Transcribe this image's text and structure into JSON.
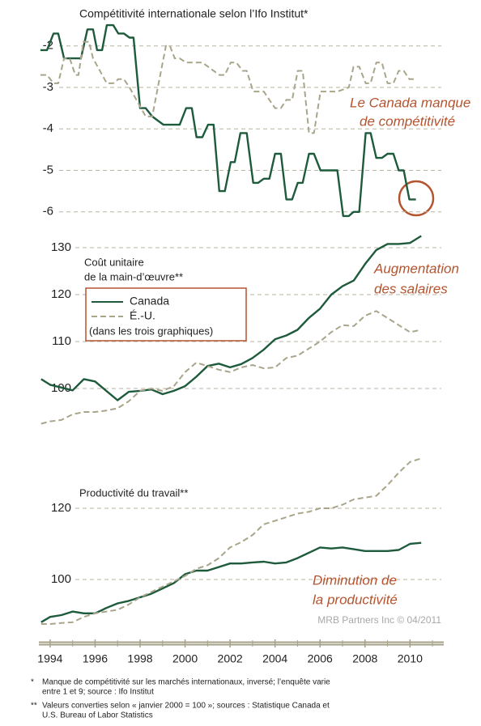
{
  "chart_data": [
    {
      "type": "line",
      "title": "Compétitivité internationale selon l’Ifo Institut*",
      "xlim": [
        1993.5,
        2011.5
      ],
      "ylim": [
        -6.2,
        -1.4
      ],
      "yticks": [
        -2,
        -3,
        -4,
        -5,
        -6
      ],
      "grid": true,
      "series": [
        {
          "name": "Canada",
          "color": "#1e5a3c",
          "dash": false,
          "x": [
            1993.57,
            1993.86,
            1994.15,
            1994.36,
            1994.62,
            1995.37,
            1995.66,
            1995.91,
            1996.09,
            1996.31,
            1996.52,
            1996.81,
            1997.03,
            1997.28,
            1997.53,
            1997.71,
            1998.0,
            1998.25,
            1998.54,
            1998.79,
            1999.04,
            1999.76,
            2000.05,
            2000.3,
            2000.51,
            2000.77,
            2001.02,
            2001.27,
            2001.52,
            2001.77,
            2002.03,
            2002.21,
            2002.46,
            2002.74,
            2003.03,
            2003.25,
            2003.5,
            2003.75,
            2004.0,
            2004.26,
            2004.5,
            2004.76,
            2005.01,
            2005.23,
            2005.51,
            2005.73,
            2006.02,
            2006.77,
            2007.03,
            2007.28,
            2007.49,
            2007.74,
            2008.03,
            2008.25,
            2008.5,
            2008.75,
            2009.0,
            2009.26,
            2009.5,
            2009.72,
            2009.97,
            2010.26
          ],
          "values": [
            -2.1,
            -2.1,
            -1.7,
            -1.7,
            -2.3,
            -2.3,
            -1.6,
            -1.6,
            -2.1,
            -2.1,
            -1.5,
            -1.5,
            -1.7,
            -1.7,
            -1.8,
            -1.8,
            -3.5,
            -3.5,
            -3.7,
            -3.8,
            -3.9,
            -3.9,
            -3.5,
            -3.5,
            -4.2,
            -4.2,
            -3.9,
            -3.9,
            -5.5,
            -5.5,
            -4.8,
            -4.8,
            -4.1,
            -4.1,
            -5.3,
            -5.3,
            -5.2,
            -5.2,
            -4.6,
            -4.6,
            -5.7,
            -5.7,
            -5.3,
            -5.3,
            -4.6,
            -4.6,
            -5.0,
            -5.0,
            -6.1,
            -6.1,
            -6.0,
            -6.0,
            -4.1,
            -4.1,
            -4.7,
            -4.7,
            -4.6,
            -4.6,
            -5.0,
            -5.0,
            -5.7,
            -5.7
          ]
        },
        {
          "name": "É.-U.",
          "color": "#a9a58a",
          "dash": true,
          "x": [
            1993.57,
            1993.86,
            1994.15,
            1994.36,
            1994.62,
            1994.87,
            1995.12,
            1995.26,
            1995.48,
            1995.73,
            1995.91,
            1996.52,
            1996.81,
            1997.03,
            1997.28,
            1997.53,
            1998.25,
            1998.54,
            1998.79,
            1999.15,
            1999.33,
            1999.54,
            1999.76,
            2000.05,
            2000.77,
            2001.02,
            2001.52,
            2001.77,
            2002.03,
            2002.28,
            2002.56,
            2002.74,
            2003.03,
            2003.5,
            2003.75,
            2004.0,
            2004.26,
            2004.5,
            2004.76,
            2005.01,
            2005.23,
            2005.51,
            2005.73,
            2006.02,
            2006.77,
            2007.28,
            2007.49,
            2007.74,
            2008.03,
            2008.25,
            2008.5,
            2008.75,
            2009.0,
            2009.26,
            2009.5,
            2009.72,
            2009.97,
            2010.26
          ],
          "values": [
            -2.7,
            -2.7,
            -2.9,
            -2.9,
            -2.3,
            -2.3,
            -2.7,
            -2.7,
            -1.9,
            -1.9,
            -2.3,
            -2.9,
            -2.9,
            -2.8,
            -2.8,
            -3.0,
            -3.7,
            -3.7,
            -3.0,
            -2.0,
            -2.0,
            -2.3,
            -2.3,
            -2.4,
            -2.4,
            -2.5,
            -2.7,
            -2.7,
            -2.4,
            -2.4,
            -2.6,
            -2.6,
            -3.1,
            -3.1,
            -3.3,
            -3.5,
            -3.5,
            -3.3,
            -3.3,
            -2.6,
            -2.6,
            -4.1,
            -4.1,
            -3.1,
            -3.1,
            -3.0,
            -2.5,
            -2.5,
            -2.9,
            -2.9,
            -2.4,
            -2.4,
            -2.9,
            -2.9,
            -2.6,
            -2.6,
            -2.8,
            -2.8
          ]
        }
      ],
      "annotations": [
        {
          "lines": [
            "Le Canada manque",
            "de compétitivité"
          ],
          "color": "#b5532e"
        }
      ]
    },
    {
      "type": "line",
      "title": [
        "Coût unitaire",
        "de la main-d’œuvre**"
      ],
      "xlim": [
        1993.5,
        2011.5
      ],
      "x": [
        1993.6,
        1994,
        1994.5,
        1995,
        1995.5,
        1996,
        1996.5,
        1997,
        1997.5,
        1998,
        1998.5,
        1999,
        1999.5,
        2000,
        2000.5,
        2001,
        2001.5,
        2002,
        2002.5,
        2003,
        2003.5,
        2004,
        2004.5,
        2005,
        2005.5,
        2006,
        2006.5,
        2007,
        2007.5,
        2008,
        2008.5,
        2009,
        2009.5,
        2010,
        2010.5
      ],
      "ylim": [
        90,
        135
      ],
      "yticks": [
        130,
        120,
        110,
        100
      ],
      "grid": true,
      "series": [
        {
          "name": "Canada",
          "color": "#1e5a3c",
          "dash": false,
          "values": [
            102,
            100.8,
            100.2,
            99.6,
            102,
            101.5,
            99.5,
            97.5,
            99.3,
            99.5,
            99.8,
            98.8,
            99.5,
            100.5,
            102.5,
            104.8,
            105.3,
            104.5,
            105.2,
            106.5,
            108.3,
            110.5,
            111.3,
            112.5,
            115,
            117,
            120,
            121.8,
            123,
            126.5,
            129.5,
            130.8,
            130.8,
            131,
            132.5
          ]
        },
        {
          "name": "É.-U.",
          "color": "#a9a58a",
          "dash": true,
          "values": [
            92.5,
            93,
            93.3,
            94.5,
            95,
            95,
            95.3,
            95.8,
            97.3,
            99.5,
            100,
            99.5,
            100.5,
            103.5,
            105.5,
            104.8,
            104,
            103.5,
            104.5,
            105,
            104.3,
            104.5,
            106.5,
            107,
            108.5,
            110,
            112,
            113.5,
            113.3,
            115.5,
            116.5,
            115,
            113.5,
            112,
            112.5
          ]
        }
      ],
      "legend": true,
      "legend_note": "(dans les trois graphiques)",
      "annotations": [
        {
          "lines": [
            "Augmentation",
            "des salaires"
          ],
          "color": "#b5532e"
        }
      ]
    },
    {
      "type": "line",
      "title": "Productivité du travail**",
      "xlim": [
        1993.5,
        2011.5
      ],
      "xticks": [
        1994,
        1996,
        1998,
        2000,
        2002,
        2004,
        2006,
        2008,
        2010
      ],
      "xminorticks": [
        1995,
        1997,
        1999,
        2001,
        2003,
        2005,
        2007,
        2009,
        2011
      ],
      "x": [
        1993.6,
        1994,
        1994.5,
        1995,
        1995.5,
        1996,
        1996.5,
        1997,
        1997.5,
        1998,
        1998.5,
        1999,
        1999.5,
        2000,
        2000.5,
        2001,
        2001.5,
        2002,
        2002.5,
        2003,
        2003.5,
        2004,
        2004.5,
        2005,
        2005.5,
        2006,
        2006.5,
        2007,
        2007.5,
        2008,
        2008.5,
        2009,
        2009.5,
        2010,
        2010.5
      ],
      "ylim": [
        86,
        136
      ],
      "yticks": [
        120,
        100
      ],
      "grid": true,
      "series": [
        {
          "name": "Canada",
          "color": "#1e5a3c",
          "dash": false,
          "values": [
            88,
            89.5,
            90,
            91,
            90.5,
            90.5,
            92,
            93.3,
            94,
            95,
            96,
            97.5,
            99,
            101.5,
            102.5,
            102.5,
            103.5,
            104.5,
            104.5,
            104.8,
            105,
            104.5,
            104.8,
            106,
            107.5,
            109,
            108.7,
            109,
            108.5,
            108,
            108,
            108,
            108.3,
            110,
            110.3
          ]
        },
        {
          "name": "É.-U.",
          "color": "#a9a58a",
          "dash": true,
          "values": [
            87.5,
            87.5,
            87.8,
            88,
            89.5,
            90.5,
            91,
            91.5,
            93,
            95,
            96.5,
            98,
            99.5,
            101,
            103,
            104,
            106,
            109,
            110.5,
            112.5,
            115.5,
            116.5,
            117.5,
            118.5,
            119,
            120,
            120,
            121,
            122.5,
            123,
            123.5,
            126.5,
            130,
            133,
            134
          ]
        }
      ],
      "annotations": [
        {
          "lines": [
            "Diminution de",
            "la productivité"
          ],
          "color": "#b5532e"
        }
      ],
      "source": "MRB Partners Inc © 04/2011"
    }
  ],
  "footnotes": [
    {
      "marker": "*",
      "lines": [
        "Manque de compétitivité sur les marchés internationaux, inversé; l’enquête varie",
        "entre 1 et 9; source : Ifo Institut"
      ]
    },
    {
      "marker": "**",
      "lines": [
        "Valeurs converties selon « janvier 2000 = 100 »; sources : Statistique Canada et",
        "U.S. Bureau of Labor Statistics"
      ]
    }
  ]
}
